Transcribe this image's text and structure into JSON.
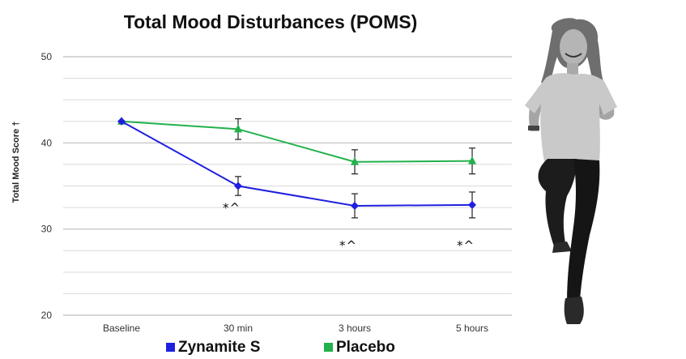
{
  "chart_data": {
    "type": "line",
    "title": "Total Mood Disturbances (POMS)",
    "xlabel": "",
    "ylabel": "Total Mood Score †",
    "categories": [
      "Baseline",
      "30 min",
      "3 hours",
      "5 hours"
    ],
    "ylim": [
      20,
      50
    ],
    "yticks": [
      20,
      30,
      40,
      50
    ],
    "grid": true,
    "legend": "bottom",
    "series": [
      {
        "name": "Zynamite S",
        "color": "#1f1fe0",
        "marker": "diamond",
        "values": [
          42.5,
          35.0,
          32.7,
          32.8
        ],
        "error": [
          0,
          1.1,
          1.4,
          1.5
        ]
      },
      {
        "name": "Placebo",
        "color": "#22b14c",
        "marker": "triangle",
        "values": [
          42.5,
          41.6,
          37.8,
          37.9
        ],
        "error": [
          0,
          1.2,
          1.4,
          1.5
        ]
      }
    ],
    "annotations": [
      {
        "category": "30 min",
        "text": "*^",
        "y": 32.0
      },
      {
        "category": "3 hours",
        "text": "*^",
        "y": 27.6
      },
      {
        "category": "5 hours",
        "text": "*^",
        "y": 27.6
      }
    ]
  },
  "photo": {
    "icon": "cheering-girl-photo"
  }
}
